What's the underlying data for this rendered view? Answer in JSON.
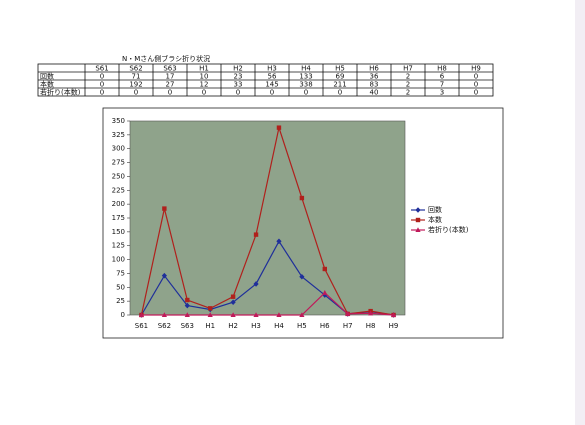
{
  "table": {
    "title": "N・Mさん側ブラシ折り状況",
    "header": [
      "S61",
      "S62",
      "S63",
      "H1",
      "H2",
      "H3",
      "H4",
      "H5",
      "H6",
      "H7",
      "H8",
      "H9"
    ],
    "rows": [
      {
        "label": "回数",
        "values": [
          0,
          71,
          17,
          10,
          23,
          56,
          133,
          69,
          36,
          2,
          6,
          0
        ]
      },
      {
        "label": "本数",
        "values": [
          0,
          192,
          27,
          12,
          33,
          145,
          338,
          211,
          83,
          2,
          7,
          0
        ]
      },
      {
        "label": "若折り(本数)",
        "values": [
          0,
          0,
          0,
          0,
          0,
          0,
          0,
          0,
          40,
          2,
          3,
          0
        ]
      }
    ]
  },
  "chart_data": {
    "type": "line",
    "categories": [
      "S61",
      "S62",
      "S63",
      "H1",
      "H2",
      "H3",
      "H4",
      "H5",
      "H6",
      "H7",
      "H8",
      "H9"
    ],
    "series": [
      {
        "name": "回数",
        "color": "#1f2f9a",
        "marker": "diamond",
        "values": [
          0,
          71,
          17,
          10,
          23,
          56,
          133,
          69,
          36,
          2,
          6,
          0
        ]
      },
      {
        "name": "本数",
        "color": "#b0201c",
        "marker": "square",
        "values": [
          0,
          192,
          27,
          12,
          33,
          145,
          338,
          211,
          83,
          2,
          7,
          0
        ]
      },
      {
        "name": "若折り(本数)",
        "color": "#c01a5a",
        "marker": "triangle",
        "values": [
          0,
          0,
          0,
          0,
          0,
          0,
          0,
          0,
          40,
          2,
          3,
          0
        ]
      }
    ],
    "ylim": [
      0,
      350
    ],
    "yticks": [
      0,
      25,
      50,
      75,
      100,
      125,
      150,
      175,
      200,
      225,
      250,
      275,
      300,
      325,
      350
    ],
    "plot_background": "#8fa38b",
    "legend": "right"
  }
}
